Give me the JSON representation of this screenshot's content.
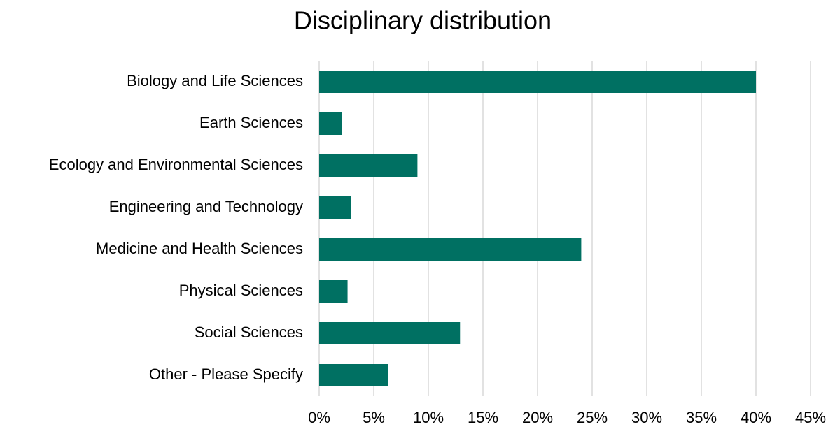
{
  "chart_data": {
    "type": "barh",
    "title": "Disciplinary distribution",
    "categories": [
      "Biology and Life Sciences",
      "Earth Sciences",
      "Ecology and Environmental Sciences",
      "Engineering and Technology",
      "Medicine and Health Sciences",
      "Physical Sciences",
      "Social Sciences",
      "Other - Please Specify"
    ],
    "values": [
      40.0,
      2.1,
      9.0,
      2.9,
      24.0,
      2.6,
      12.9,
      6.3
    ],
    "color": "#007062",
    "xlim": [
      0,
      45
    ],
    "xticks": [
      {
        "value": 0,
        "label": "0%"
      },
      {
        "value": 5,
        "label": "5%"
      },
      {
        "value": 10,
        "label": "10%"
      },
      {
        "value": 15,
        "label": "15%"
      },
      {
        "value": 20,
        "label": "20%"
      },
      {
        "value": 25,
        "label": "25%"
      },
      {
        "value": 30,
        "label": "30%"
      },
      {
        "value": 35,
        "label": "35%"
      },
      {
        "value": 40,
        "label": "40%"
      },
      {
        "value": 45,
        "label": "45%"
      }
    ],
    "grid": true
  }
}
